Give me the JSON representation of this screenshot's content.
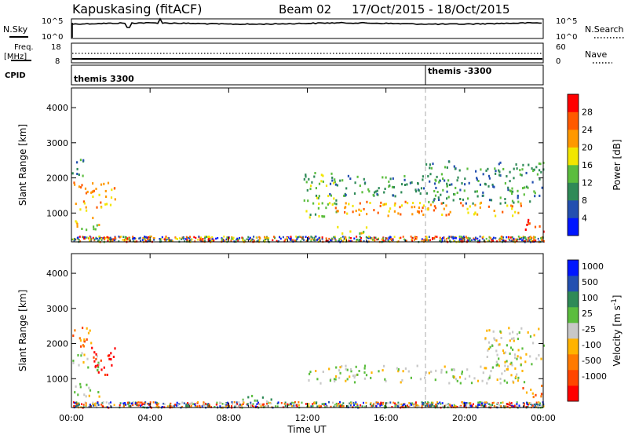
{
  "header": {
    "title": "Kapuskasing (fitACF)",
    "beam": "Beam 02",
    "date_range": "17/Oct/2015 - 18/Oct/2015"
  },
  "noise_panel": {
    "label": "N.Sky",
    "right_label": "N.Search",
    "left_ticks": [
      "10^5",
      "10^0"
    ],
    "right_ticks": [
      "10^5",
      "10^0"
    ]
  },
  "freq_panel": {
    "label_line1": "Freq.",
    "label_line2": "[MHz]",
    "right_label": "Nave",
    "left_ticks": [
      "18",
      "8"
    ],
    "right_ticks": [
      "60",
      "0"
    ]
  },
  "cpid_panel": {
    "label": "CPID",
    "programs": [
      {
        "name": "themis 3300",
        "start_hour": 0
      },
      {
        "name": "themis -3300",
        "start_hour": 18
      }
    ]
  },
  "chart_data": [
    {
      "type": "heatmap",
      "name": "power",
      "ylabel": "Slant Range [km]",
      "ylim": [
        180,
        4560
      ],
      "yticks": [
        "1000",
        "2000",
        "3000",
        "4000"
      ],
      "xlim_hours": [
        0,
        24
      ],
      "xticks": [
        "00:00",
        "04:00",
        "08:00",
        "12:00",
        "16:00",
        "20:00",
        "00:00"
      ],
      "colorbar": {
        "label": "Power [dB]",
        "ticks": [
          "4",
          "8",
          "12",
          "16",
          "20",
          "24",
          "28"
        ],
        "colors": [
          "#0016ff",
          "#234fb0",
          "#2f8a57",
          "#5bbd3e",
          "#f2e600",
          "#ff9800",
          "#ff5a00",
          "#ff0000"
        ]
      },
      "echo_regions": [
        {
          "t": [
            0.0,
            0.6
          ],
          "r": [
            1900,
            2550
          ],
          "level": 2
        },
        {
          "t": [
            0.0,
            2.2
          ],
          "r": [
            1100,
            1900
          ],
          "level": 5
        },
        {
          "t": [
            0.1,
            1.6
          ],
          "r": [
            550,
            900
          ],
          "level": 4
        },
        {
          "t": [
            11.8,
            13.5
          ],
          "r": [
            900,
            2200
          ],
          "level": 3
        },
        {
          "t": [
            12.5,
            17.5
          ],
          "r": [
            950,
            1350
          ],
          "level": 5
        },
        {
          "t": [
            17.5,
            23.0
          ],
          "r": [
            950,
            1350
          ],
          "level": 5
        },
        {
          "t": [
            13.0,
            18.0
          ],
          "r": [
            1500,
            2100
          ],
          "level": 2
        },
        {
          "t": [
            18.0,
            24.0
          ],
          "r": [
            1300,
            2500
          ],
          "level": 2
        },
        {
          "t": [
            22.8,
            24.0
          ],
          "r": [
            500,
            850
          ],
          "level": 7
        },
        {
          "t": [
            13.5,
            15.0
          ],
          "r": [
            420,
            650
          ],
          "level": 4
        }
      ]
    },
    {
      "type": "heatmap",
      "name": "velocity",
      "ylabel": "Slant Range [km]",
      "ylim": [
        180,
        4560
      ],
      "yticks": [
        "1000",
        "2000",
        "3000",
        "4000"
      ],
      "xlim_hours": [
        0,
        24
      ],
      "xticks": [
        "00:00",
        "04:00",
        "08:00",
        "12:00",
        "16:00",
        "20:00",
        "00:00"
      ],
      "xlabel": "Time UT",
      "colorbar": {
        "label": "Velocity [m s^-1]",
        "ticks": [
          "1000",
          "500",
          "100",
          "25",
          "-25",
          "-100",
          "-500",
          "-1000"
        ],
        "colors": [
          "#0016ff",
          "#234fb0",
          "#2f8a57",
          "#5bbd3e",
          "#c8c8c8",
          "#ffb300",
          "#ff7a00",
          "#ff4500",
          "#ff0000"
        ]
      },
      "echo_regions": [
        {
          "t": [
            0.0,
            1.0
          ],
          "r": [
            1800,
            2500
          ],
          "level": 6
        },
        {
          "t": [
            0.0,
            1.4
          ],
          "r": [
            1250,
            1800
          ],
          "level": 4
        },
        {
          "t": [
            1.0,
            2.2
          ],
          "r": [
            1100,
            1950
          ],
          "level": 8
        },
        {
          "t": [
            0.1,
            1.6
          ],
          "r": [
            500,
            900
          ],
          "level": 4
        },
        {
          "t": [
            12.0,
            23.0
          ],
          "r": [
            900,
            1400
          ],
          "level": 4
        },
        {
          "t": [
            21.0,
            24.0
          ],
          "r": [
            1400,
            2500
          ],
          "level": 4
        },
        {
          "t": [
            22.8,
            24.0
          ],
          "r": [
            500,
            850
          ],
          "level": 6
        },
        {
          "t": [
            8.5,
            10.5
          ],
          "r": [
            300,
            550
          ],
          "level": 3
        }
      ]
    }
  ]
}
